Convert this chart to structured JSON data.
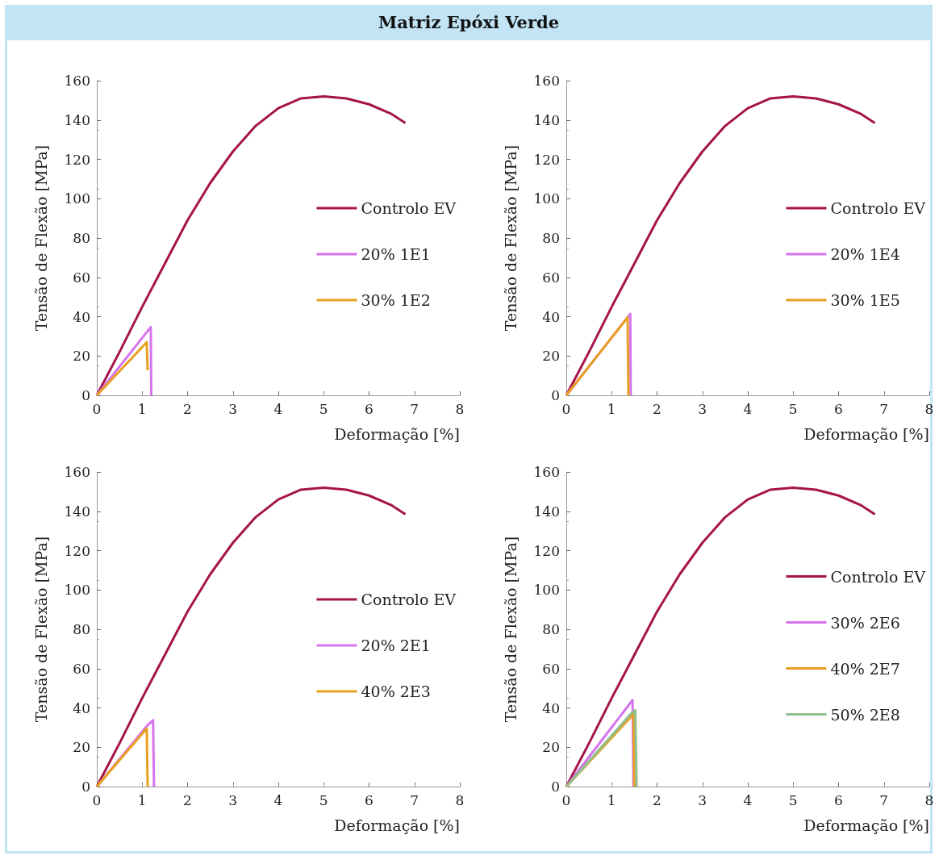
{
  "chart_data": [
    {
      "type": "line",
      "title": "Matriz Epóxi Verde",
      "xlabel": "Deformação [%]",
      "ylabel": "Tensão de Flexão [MPa]",
      "xlim": [
        0,
        8
      ],
      "xticks": [
        0,
        1,
        2,
        3,
        4,
        5,
        6,
        7,
        8
      ],
      "ylim": [
        0,
        160
      ],
      "yticks": [
        0,
        20,
        40,
        60,
        80,
        100,
        120,
        140,
        160
      ],
      "grid": false,
      "legend": "right",
      "marker": "none",
      "line_style": "solid",
      "series": [
        {
          "name": "Controlo EV",
          "color": "#a5154b",
          "x": [
            0,
            0.5,
            1,
            1.5,
            2,
            2.5,
            3,
            3.5,
            4,
            4.5,
            5,
            5.5,
            6,
            6.5,
            6.8
          ],
          "values": [
            0,
            22,
            45,
            67,
            89,
            108,
            124,
            137,
            146,
            151,
            152,
            151,
            148,
            143,
            138.5
          ]
        },
        {
          "name": "20% 1E1",
          "color": "#d674f0",
          "x": [
            0,
            1.19,
            1.2
          ],
          "values": [
            0,
            34.7,
            0
          ]
        },
        {
          "name": "30% 1E2",
          "color": "#e8a020",
          "x": [
            0,
            1.1,
            1.12
          ],
          "values": [
            0,
            27,
            12.7
          ]
        }
      ]
    },
    {
      "type": "line",
      "xlabel": "Deformação [%]",
      "ylabel": "Tensão de Flexão [MPa]",
      "xlim": [
        0,
        8
      ],
      "xticks": [
        0,
        1,
        2,
        3,
        4,
        5,
        6,
        7,
        8
      ],
      "ylim": [
        0,
        160
      ],
      "yticks": [
        0,
        20,
        40,
        60,
        80,
        100,
        120,
        140,
        160
      ],
      "grid": false,
      "legend": "right",
      "marker": "none",
      "line_style": "solid",
      "series": [
        {
          "name": "Controlo EV",
          "color": "#a5154b",
          "x": [
            0,
            0.5,
            1,
            1.5,
            2,
            2.5,
            3,
            3.5,
            4,
            4.5,
            5,
            5.5,
            6,
            6.5,
            6.8
          ],
          "values": [
            0,
            22,
            45,
            67,
            89,
            108,
            124,
            137,
            146,
            151,
            152,
            151,
            148,
            143,
            138.5
          ]
        },
        {
          "name": "20% 1E4",
          "color": "#d674f0",
          "x": [
            0,
            1.41,
            1.42
          ],
          "values": [
            0,
            41.4,
            0
          ]
        },
        {
          "name": "30% 1E5",
          "color": "#e8a020",
          "x": [
            0,
            1.35,
            1.37
          ],
          "values": [
            0,
            39.6,
            0
          ]
        }
      ]
    },
    {
      "type": "line",
      "xlabel": "Deformação [%]",
      "ylabel": "Tensão de Flexão [MPa]",
      "xlim": [
        0,
        8
      ],
      "xticks": [
        0,
        1,
        2,
        3,
        4,
        5,
        6,
        7,
        8
      ],
      "ylim": [
        0,
        160
      ],
      "yticks": [
        0,
        20,
        40,
        60,
        80,
        100,
        120,
        140,
        160
      ],
      "grid": false,
      "legend": "right",
      "marker": "none",
      "line_style": "solid",
      "series": [
        {
          "name": "Controlo EV",
          "color": "#a5154b",
          "x": [
            0,
            0.5,
            1,
            1.5,
            2,
            2.5,
            3,
            3.5,
            4,
            4.5,
            5,
            5.5,
            6,
            6.5,
            6.8
          ],
          "values": [
            0,
            22,
            45,
            67,
            89,
            108,
            124,
            137,
            146,
            151,
            152,
            151,
            148,
            143,
            138.5
          ]
        },
        {
          "name": "20% 2E1",
          "color": "#d674f0",
          "x": [
            0,
            1.11,
            1.24,
            1.26
          ],
          "values": [
            0,
            31,
            33.8,
            0
          ]
        },
        {
          "name": "40% 2E3",
          "color": "#e8a020",
          "x": [
            0,
            1.1,
            1.12
          ],
          "values": [
            0,
            29.5,
            0
          ]
        }
      ]
    },
    {
      "type": "line",
      "xlabel": "Deformação [%]",
      "ylabel": "Tensão de Flexão [MPa]",
      "xlim": [
        0,
        8
      ],
      "xticks": [
        0,
        1,
        2,
        3,
        4,
        5,
        6,
        7,
        8
      ],
      "ylim": [
        0,
        160
      ],
      "yticks": [
        0,
        20,
        40,
        60,
        80,
        100,
        120,
        140,
        160
      ],
      "grid": false,
      "legend": "right",
      "marker": "none",
      "line_style": "solid",
      "series": [
        {
          "name": "Controlo EV",
          "color": "#a5154b",
          "x": [
            0,
            0.5,
            1,
            1.5,
            2,
            2.5,
            3,
            3.5,
            4,
            4.5,
            5,
            5.5,
            6,
            6.5,
            6.8
          ],
          "values": [
            0,
            22,
            45,
            67,
            89,
            108,
            124,
            137,
            146,
            151,
            152,
            151,
            148,
            143,
            138.5
          ]
        },
        {
          "name": "30% 2E6",
          "color": "#d674f0",
          "x": [
            0,
            1.46,
            1.48
          ],
          "values": [
            0,
            44,
            0
          ]
        },
        {
          "name": "40% 2E7",
          "color": "#e8a020",
          "x": [
            0,
            1.48,
            1.5
          ],
          "values": [
            0,
            36.8,
            0
          ]
        },
        {
          "name": "50% 2E8",
          "color": "#8fbf8f",
          "x": [
            0,
            1.44,
            1.52,
            1.55
          ],
          "values": [
            0,
            37.4,
            38.8,
            0
          ]
        }
      ]
    }
  ]
}
